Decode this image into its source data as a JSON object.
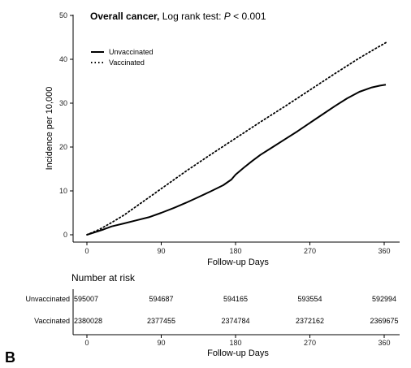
{
  "chart_data": {
    "type": "line",
    "title_bold": "Overall cancer,",
    "title_rest": " Log rank test: ",
    "title_p": "P",
    "title_tail": " < 0.001",
    "xlabel": "Follow-up Days",
    "ylabel": "Incidence per 10,000",
    "xlim": [
      0,
      365
    ],
    "ylim": [
      0,
      50
    ],
    "x_ticks": [
      "0",
      "90",
      "180",
      "270",
      "360"
    ],
    "x_tick_values": [
      0,
      90,
      180,
      270,
      360
    ],
    "y_ticks": [
      "0",
      "10",
      "20",
      "30",
      "40",
      "50"
    ],
    "y_tick_values": [
      0,
      10,
      20,
      30,
      40,
      50
    ],
    "grid": false,
    "legend_position": "top-left",
    "series": [
      {
        "name": "Unvaccinated",
        "style": "solid",
        "color": "#000000",
        "x": [
          0,
          10,
          20,
          30,
          45,
          60,
          75,
          90,
          105,
          120,
          135,
          150,
          165,
          175,
          180,
          190,
          200,
          210,
          225,
          240,
          255,
          270,
          285,
          300,
          315,
          330,
          345,
          355,
          362
        ],
        "y": [
          0,
          0.6,
          1.2,
          1.9,
          2.6,
          3.3,
          4.0,
          5.0,
          6.1,
          7.3,
          8.6,
          9.9,
          11.3,
          12.6,
          13.7,
          15.3,
          16.8,
          18.2,
          20.0,
          21.8,
          23.6,
          25.5,
          27.4,
          29.3,
          31.1,
          32.6,
          33.6,
          34.0,
          34.2
        ]
      },
      {
        "name": "Vaccinated",
        "style": "dotted",
        "color": "#000000",
        "x": [
          0,
          15,
          30,
          45,
          60,
          75,
          90,
          120,
          150,
          180,
          210,
          240,
          270,
          300,
          330,
          350,
          362
        ],
        "y": [
          0,
          1.2,
          2.8,
          4.5,
          6.5,
          8.5,
          10.5,
          14.5,
          18.3,
          22.0,
          25.7,
          29.3,
          33.0,
          36.7,
          40.3,
          42.5,
          43.8
        ]
      }
    ]
  },
  "risk_table": {
    "title": "Number at risk",
    "xlabel": "Follow-up Days",
    "x_ticks": [
      "0",
      "90",
      "180",
      "270",
      "360"
    ],
    "rows": [
      {
        "label": "Unvaccinated",
        "values": [
          "595007",
          "594687",
          "594165",
          "593554",
          "592994"
        ]
      },
      {
        "label": "Vaccinated",
        "values": [
          "2380028",
          "2377455",
          "2374784",
          "2372162",
          "2369675"
        ]
      }
    ]
  },
  "panel_label": "B"
}
